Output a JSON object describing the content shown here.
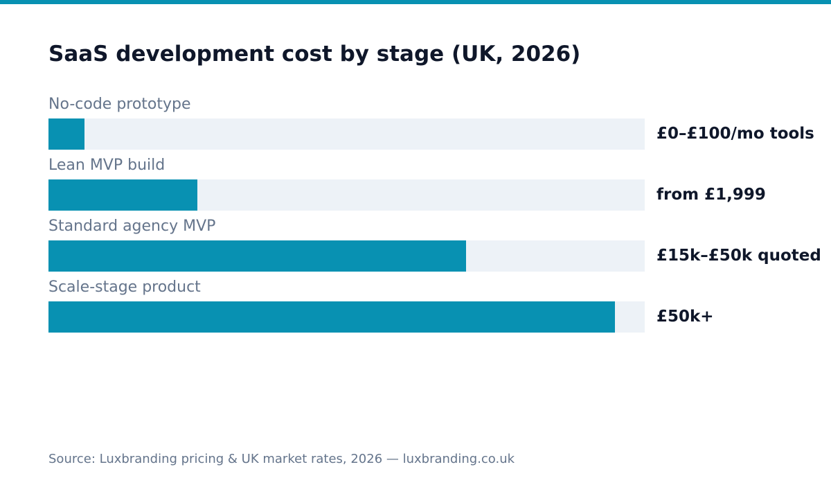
{
  "colors": {
    "accent": "#0891b2",
    "track": "#edf2f7",
    "title": "#0f172a",
    "muted": "#64748b"
  },
  "chart_data": {
    "type": "bar",
    "orientation": "horizontal",
    "title": "SaaS development cost by stage (UK, 2026)",
    "categories": [
      "No-code prototype",
      "Lean MVP build",
      "Standard agency MVP",
      "Scale-stage product"
    ],
    "values": [
      0.06,
      0.25,
      0.7,
      0.95
    ],
    "value_scale": "relative fill of track (0–1)",
    "data_labels": [
      "£0–£100/mo tools",
      "from £1,999",
      "£15k–£50k quoted",
      "£50k+"
    ],
    "xlim": [
      0,
      1
    ],
    "grid": false,
    "legend": "none"
  },
  "footer": {
    "source": "Source: Luxbranding pricing & UK market rates, 2026 — luxbranding.co.uk"
  }
}
